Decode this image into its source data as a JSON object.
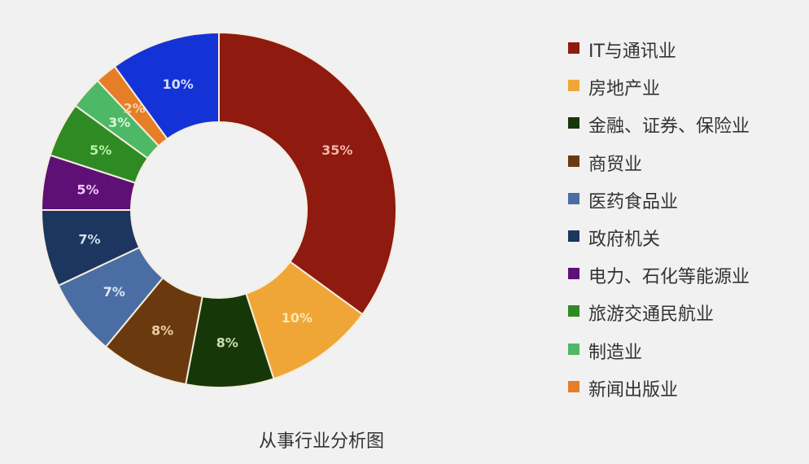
{
  "chart_data": {
    "type": "pie",
    "donut": true,
    "title": "从事行业分析图",
    "legend_position": "right",
    "slices": [
      {
        "name": "IT与通讯业",
        "value": 35,
        "label": "35%",
        "color": "#8e1a10",
        "label_color": "#f3b7a8"
      },
      {
        "name": "房地产业",
        "value": 10,
        "label": "10%",
        "color": "#f0a637",
        "label_color": "#fbe7b5"
      },
      {
        "name": "金融、证券、保险业",
        "value": 8,
        "label": "8%",
        "color": "#163809",
        "label_color": "#c9dfb8"
      },
      {
        "name": "商贸业",
        "value": 8,
        "label": "8%",
        "color": "#6a3a0e",
        "label_color": "#f0cda8"
      },
      {
        "name": "医药食品业",
        "value": 7,
        "label": "7%",
        "color": "#4a6ea3",
        "label_color": "#dbe6f5"
      },
      {
        "name": "政府机关",
        "value": 7,
        "label": "7%",
        "color": "#1c365f",
        "label_color": "#d3ddee"
      },
      {
        "name": "电力、石化等能源业",
        "value": 5,
        "label": "5%",
        "color": "#5e1077",
        "label_color": "#f0c8f5"
      },
      {
        "name": "旅游交通民航业",
        "value": 5,
        "label": "5%",
        "color": "#2e8a23",
        "label_color": "#b8f0a8"
      },
      {
        "name": "制造业",
        "value": 3,
        "label": "3%",
        "color": "#4db865",
        "label_color": "#d8f7da"
      },
      {
        "name": "新闻出版业",
        "value": 2,
        "label": "2%",
        "color": "#e67d27",
        "label_color": "#f9d4a8"
      },
      {
        "name": "",
        "value": 10,
        "label": "10%",
        "color": "#1433d6",
        "label_color": "#d6dcff"
      }
    ]
  }
}
